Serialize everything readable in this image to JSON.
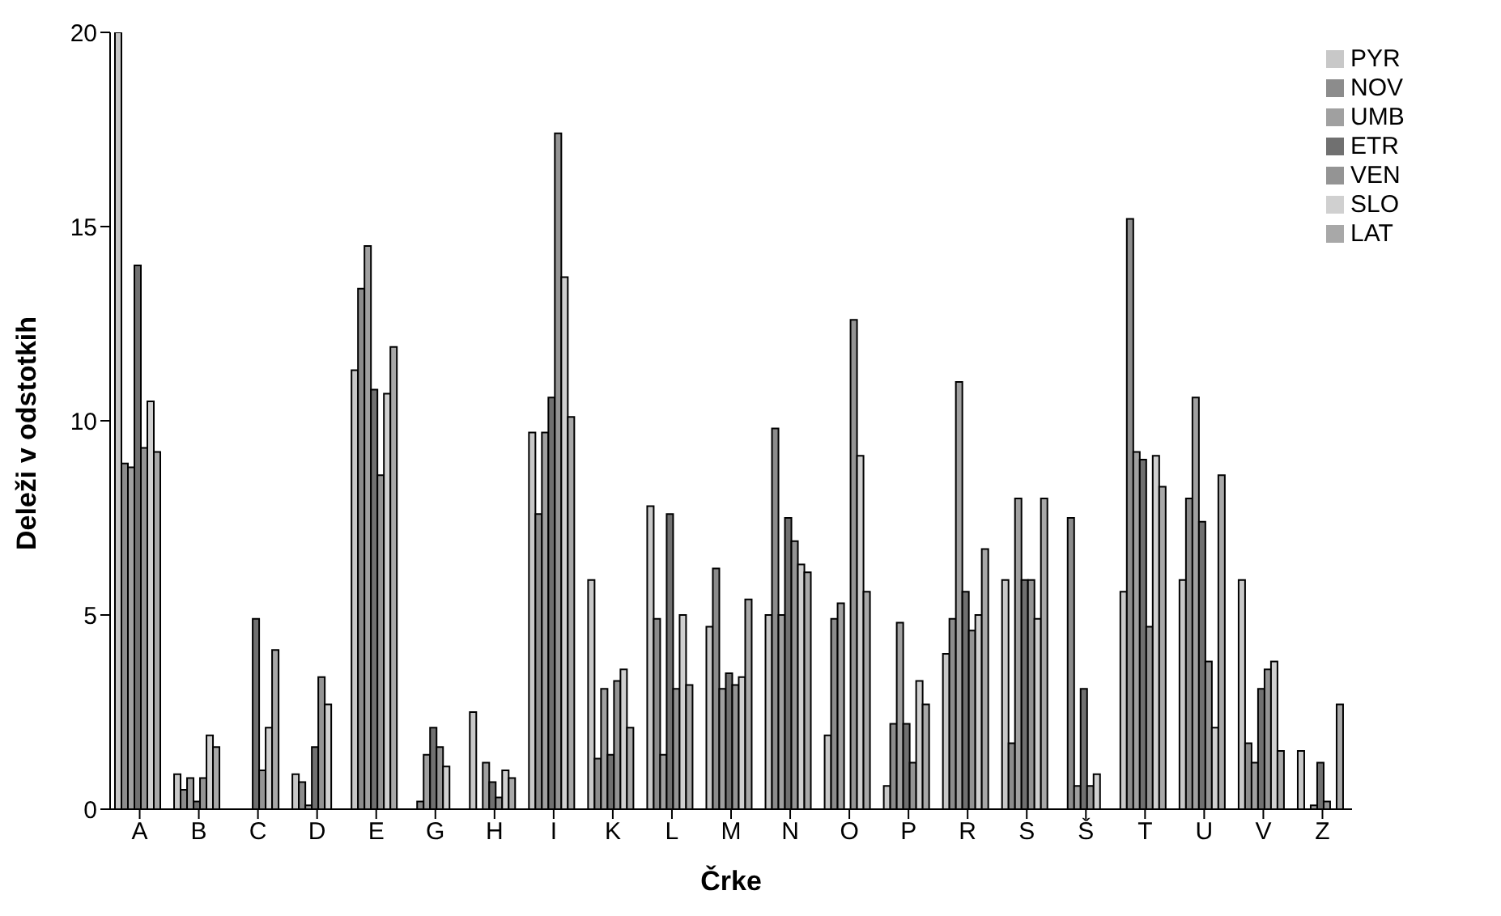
{
  "chart_data": {
    "type": "bar",
    "xlabel": "Črke",
    "ylabel": "Deleži v odstotkih",
    "categories": [
      "A",
      "B",
      "C",
      "D",
      "E",
      "G",
      "H",
      "I",
      "K",
      "L",
      "M",
      "N",
      "O",
      "P",
      "R",
      "S",
      "Š",
      "T",
      "U",
      "V",
      "Z"
    ],
    "series": [
      {
        "name": "PYR",
        "color": "#c8c8c8",
        "values": [
          20,
          0.9,
          0,
          0.9,
          11.3,
          0,
          2.5,
          9.7,
          5.9,
          7.8,
          4.7,
          5.0,
          1.9,
          0.6,
          4.0,
          5.9,
          0,
          5.6,
          5.9,
          5.9,
          1.5
        ]
      },
      {
        "name": "NOV",
        "color": "#8c8c8c",
        "values": [
          8.9,
          0.5,
          0,
          0.7,
          13.4,
          0.2,
          0,
          7.6,
          1.3,
          4.9,
          6.2,
          9.8,
          4.9,
          2.2,
          4.9,
          1.7,
          7.5,
          15.2,
          8.0,
          1.7,
          0
        ]
      },
      {
        "name": "UMB",
        "color": "#a0a0a0",
        "values": [
          8.8,
          0.8,
          0,
          0.1,
          14.5,
          1.4,
          1.2,
          9.7,
          3.1,
          1.4,
          3.1,
          5.0,
          5.3,
          4.8,
          11.0,
          8.0,
          0.6,
          9.2,
          10.6,
          1.2,
          0.1
        ]
      },
      {
        "name": "ETR",
        "color": "#707070",
        "values": [
          14.0,
          0.2,
          4.9,
          1.6,
          10.8,
          2.1,
          0.7,
          10.6,
          1.4,
          7.6,
          3.5,
          7.5,
          0,
          2.2,
          5.6,
          5.9,
          3.1,
          9.0,
          7.4,
          3.1,
          1.2
        ]
      },
      {
        "name": "VEN",
        "color": "#949494",
        "values": [
          9.3,
          0.8,
          1.0,
          3.4,
          8.6,
          1.6,
          0.3,
          17.4,
          3.3,
          3.1,
          3.2,
          6.9,
          12.6,
          1.2,
          4.6,
          5.9,
          0.6,
          4.7,
          3.8,
          3.6,
          0.2
        ]
      },
      {
        "name": "SLO",
        "color": "#d0d0d0",
        "values": [
          10.5,
          1.9,
          2.1,
          2.7,
          10.7,
          1.1,
          1.0,
          13.7,
          3.6,
          5.0,
          3.4,
          6.3,
          9.1,
          3.3,
          5.0,
          4.9,
          0.9,
          9.1,
          2.1,
          3.8,
          0
        ]
      },
      {
        "name": "LAT",
        "color": "#a8a8a8",
        "values": [
          9.2,
          1.6,
          4.1,
          0,
          11.9,
          0,
          0.8,
          10.1,
          2.1,
          3.2,
          5.4,
          6.1,
          5.6,
          2.7,
          6.7,
          8.0,
          0,
          8.3,
          8.6,
          1.5,
          2.7
        ]
      }
    ],
    "ylim": [
      0,
      20
    ],
    "yticks": [
      0,
      5,
      10,
      15,
      20
    ],
    "grid": false,
    "legend": "top right"
  }
}
